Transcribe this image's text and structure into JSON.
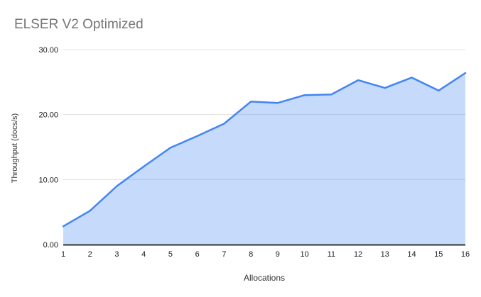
{
  "chart": {
    "title": "ELSER V2 Optimized",
    "xlabel": "Allocations",
    "ylabel": "Throughput (docs/s)"
  },
  "chart_data": {
    "type": "area",
    "title": "ELSER V2 Optimized",
    "xlabel": "Allocations",
    "ylabel": "Throughput (docs/s)",
    "categories": [
      "1",
      "2",
      "3",
      "4",
      "5",
      "6",
      "7",
      "8",
      "9",
      "10",
      "11",
      "12",
      "13",
      "14",
      "15",
      "16"
    ],
    "values": [
      2.8,
      5.2,
      9.0,
      12.0,
      14.9,
      16.7,
      18.6,
      22.0,
      21.8,
      23.0,
      23.1,
      25.3,
      24.1,
      25.7,
      23.7,
      26.4
    ],
    "ylim": [
      0,
      30
    ],
    "y_ticks": [
      "0.00",
      "10.00",
      "20.00",
      "30.00"
    ],
    "grid": true,
    "legend": "none",
    "colors": {
      "line": "#4285f4",
      "area_fill": "rgba(66,133,244,0.3)",
      "gridline": "#e0e0e0",
      "axis_line": "#333333",
      "tick_text": "#1a1a1a",
      "title_text": "#757575"
    }
  }
}
